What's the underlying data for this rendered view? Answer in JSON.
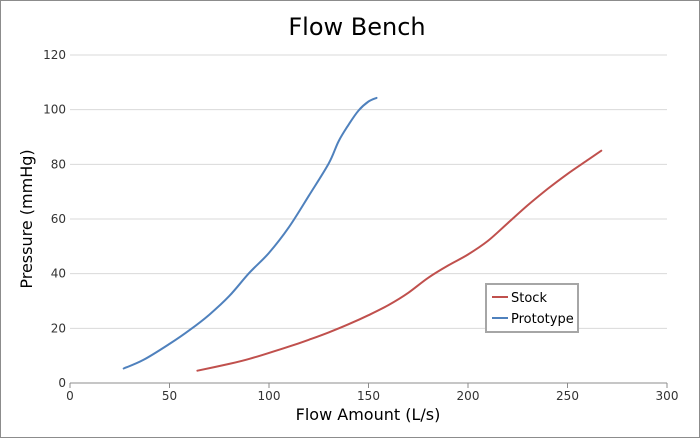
{
  "chart_data": {
    "type": "line",
    "title": "Flow Bench",
    "xlabel": "Flow Amount (L/s)",
    "ylabel": "Pressure (mmHg)",
    "xlim": [
      0,
      300
    ],
    "ylim": [
      0,
      120
    ],
    "xticks": [
      0,
      50,
      100,
      150,
      200,
      250,
      300
    ],
    "yticks": [
      0,
      20,
      40,
      60,
      80,
      100,
      120
    ],
    "grid": true,
    "legend_position": "lower-right",
    "series": [
      {
        "name": "Stock",
        "color": "#c0504d",
        "x": [
          64,
          80,
          90,
          100,
          110,
          120,
          130,
          140,
          150,
          160,
          170,
          180,
          190,
          200,
          210,
          220,
          230,
          240,
          250,
          260,
          267
        ],
        "y": [
          4.5,
          7,
          8.8,
          11,
          13.3,
          15.8,
          18.5,
          21.5,
          24.8,
          28.5,
          33,
          38.5,
          43,
          47,
          52,
          58.5,
          65,
          71,
          76.5,
          81.5,
          85
        ]
      },
      {
        "name": "Prototype",
        "color": "#4f81bd",
        "x": [
          27,
          37,
          50,
          60,
          70,
          80,
          90,
          100,
          110,
          120,
          130,
          135,
          140,
          145,
          150,
          154
        ],
        "y": [
          5.3,
          8.5,
          14.3,
          19.3,
          25,
          31.8,
          40.2,
          47.6,
          57,
          68.5,
          80.3,
          88.5,
          94.5,
          99.7,
          103,
          104.3
        ]
      }
    ]
  }
}
